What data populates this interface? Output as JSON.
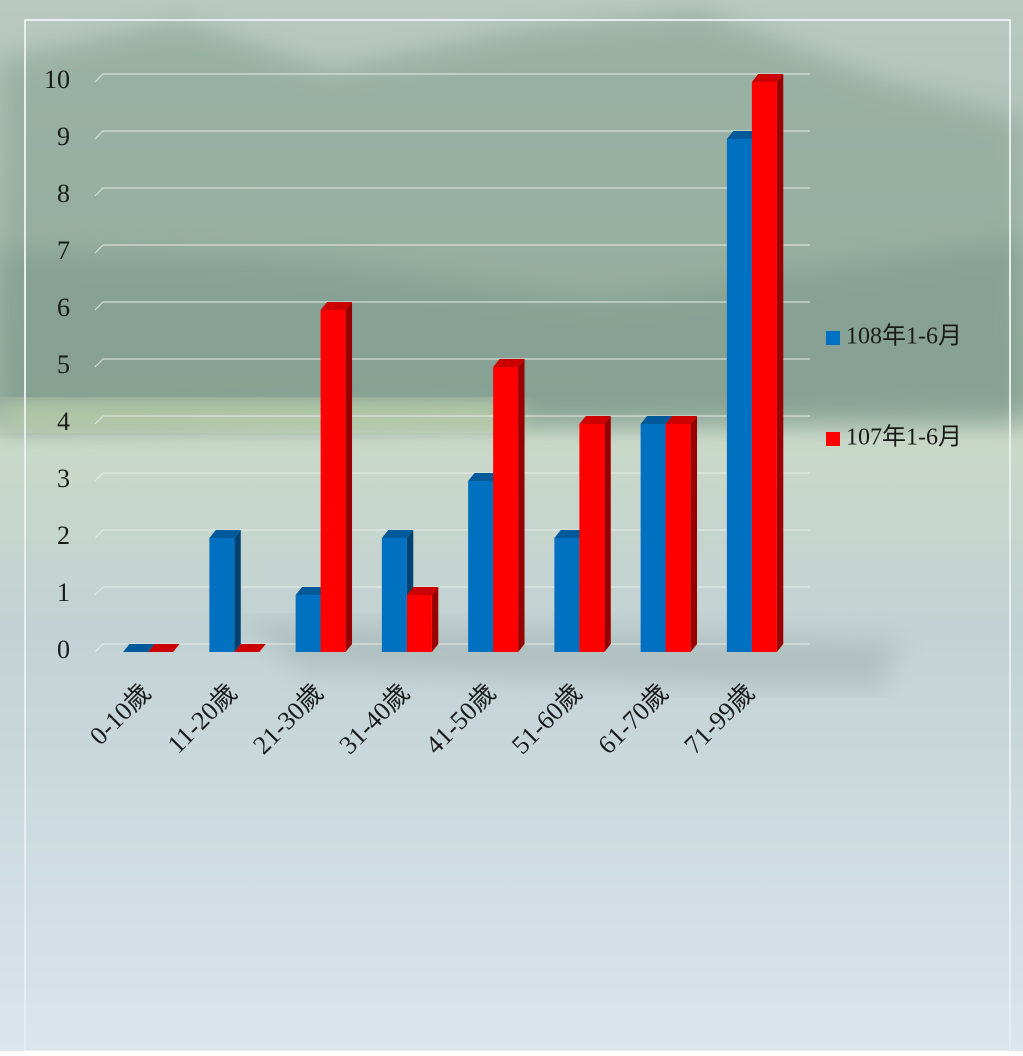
{
  "chart_data": {
    "type": "bar3d",
    "categories": [
      "0-10歲",
      "11-20歲",
      "21-30歲",
      "31-40歲",
      "41-50歲",
      "51-60歲",
      "61-70歲",
      "71-99歲"
    ],
    "series": [
      {
        "name": "108年1-6月",
        "color": "#0070c0",
        "values": [
          0,
          2,
          1,
          2,
          3,
          2,
          4,
          9
        ]
      },
      {
        "name": "107年1-6月",
        "color": "#ff0000",
        "values": [
          0,
          0,
          6,
          1,
          5,
          4,
          4,
          10
        ]
      }
    ],
    "ylim": [
      0,
      10
    ],
    "yticks": [
      0,
      1,
      2,
      3,
      4,
      5,
      6,
      7,
      8,
      9,
      10
    ],
    "grid": true,
    "legend": "right"
  }
}
